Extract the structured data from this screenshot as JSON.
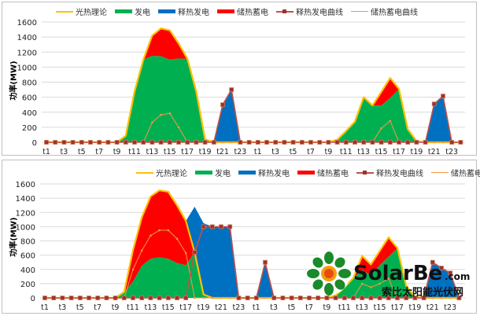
{
  "legend": [
    "光热理论",
    "发电",
    "释热发电",
    "储热蓄电",
    "释热发电曲线",
    "储热蓄电曲线"
  ],
  "colors": {
    "theory": "#ffc000",
    "generation": "#00b050",
    "release": "#0070c0",
    "storage": "#ff0000",
    "release_curve": "#c0504d",
    "storage_curve": "#f79646"
  },
  "watermark": {
    "logo_text": "SolarBe",
    "domain": ".com",
    "subtitle": "索比太阳能光伏网"
  },
  "chart_data": [
    {
      "type": "area",
      "ylabel": "功率(MW)",
      "ylim": [
        0,
        1600
      ],
      "yticks": [
        0,
        200,
        400,
        600,
        800,
        1000,
        1200,
        1400,
        1600
      ],
      "grid": true,
      "legend_position": "top",
      "xtick_labels": [
        "t1",
        "t3",
        "t5",
        "t7",
        "t9",
        "t11",
        "t13",
        "t15",
        "t17",
        "t19",
        "t21",
        "t23",
        "t1",
        "t3",
        "t5",
        "t7",
        "t9",
        "t11",
        "t13",
        "t15",
        "t17",
        "t19",
        "t21",
        "t23"
      ],
      "categories": [
        "t1",
        "t2",
        "t3",
        "t4",
        "t5",
        "t6",
        "t7",
        "t8",
        "t9",
        "t10",
        "t11",
        "t12",
        "t13",
        "t14",
        "t15",
        "t16",
        "t17",
        "t18",
        "t19",
        "t20",
        "t21",
        "t22",
        "t23",
        "t24",
        "t1",
        "t2",
        "t3",
        "t4",
        "t5",
        "t6",
        "t7",
        "t8",
        "t9",
        "t10",
        "t11",
        "t12",
        "t13",
        "t14",
        "t15",
        "t16",
        "t17",
        "t18",
        "t19",
        "t20",
        "t21",
        "t22",
        "t23",
        "t24"
      ],
      "series": [
        {
          "name": "光热理论",
          "kind": "line",
          "values": [
            0,
            0,
            0,
            0,
            0,
            0,
            0,
            0,
            0,
            87,
            675,
            1100,
            1420,
            1515,
            1490,
            1315,
            1110,
            675,
            40,
            0,
            0,
            0,
            0,
            0,
            0,
            0,
            0,
            0,
            0,
            0,
            0,
            0,
            0,
            35,
            150,
            275,
            600,
            490,
            670,
            855,
            710,
            175,
            15,
            0,
            0,
            0,
            0,
            0
          ]
        },
        {
          "name": "发电",
          "kind": "area",
          "values": [
            0,
            0,
            0,
            0,
            0,
            0,
            0,
            0,
            0,
            87,
            675,
            1100,
            1150,
            1145,
            1100,
            1115,
            1110,
            675,
            40,
            0,
            0,
            0,
            0,
            0,
            0,
            0,
            0,
            0,
            0,
            0,
            0,
            0,
            0,
            35,
            150,
            275,
            600,
            490,
            490,
            590,
            710,
            175,
            15,
            0,
            0,
            0,
            0,
            0
          ]
        },
        {
          "name": "储热蓄电",
          "kind": "area",
          "values": [
            0,
            0,
            0,
            0,
            0,
            0,
            0,
            0,
            0,
            0,
            0,
            0,
            270,
            370,
            390,
            200,
            0,
            0,
            0,
            0,
            0,
            0,
            0,
            0,
            0,
            0,
            0,
            0,
            0,
            0,
            0,
            0,
            0,
            0,
            0,
            0,
            0,
            0,
            180,
            265,
            0,
            0,
            0,
            0,
            0,
            0,
            0,
            0
          ]
        },
        {
          "name": "释热发电",
          "kind": "area",
          "values": [
            0,
            0,
            0,
            0,
            0,
            0,
            0,
            0,
            0,
            0,
            0,
            0,
            0,
            0,
            0,
            0,
            0,
            0,
            0,
            0,
            500,
            700,
            0,
            0,
            0,
            0,
            0,
            0,
            0,
            0,
            0,
            0,
            0,
            0,
            0,
            0,
            0,
            0,
            0,
            0,
            0,
            0,
            0,
            0,
            510,
            615,
            0,
            0
          ]
        },
        {
          "name": "释热发电曲线",
          "kind": "line",
          "values": [
            0,
            0,
            0,
            0,
            0,
            0,
            0,
            0,
            0,
            0,
            0,
            0,
            0,
            0,
            0,
            0,
            0,
            0,
            0,
            0,
            500,
            700,
            0,
            0,
            0,
            0,
            0,
            0,
            0,
            0,
            0,
            0,
            0,
            0,
            0,
            0,
            0,
            0,
            0,
            0,
            0,
            0,
            0,
            0,
            510,
            615,
            0,
            0
          ]
        },
        {
          "name": "储热蓄电曲线",
          "kind": "line",
          "values": [
            0,
            0,
            0,
            0,
            0,
            0,
            0,
            0,
            0,
            0,
            0,
            0,
            265,
            365,
            385,
            200,
            0,
            0,
            0,
            0,
            0,
            0,
            0,
            0,
            0,
            0,
            0,
            0,
            0,
            0,
            0,
            0,
            0,
            0,
            0,
            0,
            0,
            0,
            185,
            285,
            0,
            0,
            0,
            0,
            0,
            0,
            0,
            0
          ]
        }
      ]
    },
    {
      "type": "area",
      "ylabel": "功率(MW)",
      "ylim": [
        0,
        1600
      ],
      "yticks": [
        0,
        200,
        400,
        600,
        800,
        1000,
        1200,
        1400,
        1600
      ],
      "grid": true,
      "legend_position": "top-right",
      "xtick_labels": [
        "t1",
        "t3",
        "t5",
        "t7",
        "t9",
        "t11",
        "t13",
        "t15",
        "t17",
        "t19",
        "t21",
        "t23",
        "t1",
        "t3",
        "t5",
        "t7",
        "t9",
        "t11",
        "t13",
        "t15",
        "t17",
        "t19",
        "t21",
        "t23"
      ],
      "categories": [
        "t1",
        "t2",
        "t3",
        "t4",
        "t5",
        "t6",
        "t7",
        "t8",
        "t9",
        "t10",
        "t11",
        "t12",
        "t13",
        "t14",
        "t15",
        "t16",
        "t17",
        "t18",
        "t19",
        "t20",
        "t21",
        "t22",
        "t23",
        "t24",
        "t1",
        "t2",
        "t3",
        "t4",
        "t5",
        "t6",
        "t7",
        "t8",
        "t9",
        "t10",
        "t11",
        "t12",
        "t13",
        "t14",
        "t15",
        "t16",
        "t17",
        "t18",
        "t19",
        "t20",
        "t21",
        "t22",
        "t23",
        "t24"
      ],
      "series": [
        {
          "name": "光热理论",
          "kind": "line",
          "values": [
            0,
            0,
            0,
            0,
            0,
            0,
            0,
            0,
            0,
            85,
            670,
            1130,
            1425,
            1510,
            1490,
            1300,
            1080,
            640,
            50,
            0,
            0,
            0,
            0,
            0,
            0,
            0,
            0,
            0,
            0,
            0,
            0,
            0,
            0,
            35,
            150,
            280,
            590,
            470,
            660,
            850,
            700,
            170,
            15,
            0,
            0,
            0,
            0,
            0
          ]
        },
        {
          "name": "发电",
          "kind": "area",
          "values": [
            0,
            0,
            0,
            0,
            0,
            0,
            0,
            0,
            0,
            85,
            230,
            450,
            550,
            570,
            550,
            490,
            460,
            640,
            50,
            0,
            0,
            0,
            0,
            0,
            0,
            0,
            0,
            0,
            0,
            0,
            0,
            0,
            0,
            35,
            150,
            280,
            390,
            320,
            460,
            580,
            700,
            170,
            15,
            0,
            0,
            0,
            0,
            0
          ]
        },
        {
          "name": "储热蓄电",
          "kind": "area",
          "values": [
            0,
            0,
            0,
            0,
            0,
            0,
            0,
            0,
            0,
            0,
            440,
            680,
            875,
            940,
            940,
            810,
            620,
            0,
            0,
            0,
            0,
            0,
            0,
            0,
            0,
            0,
            0,
            0,
            0,
            0,
            0,
            0,
            0,
            0,
            0,
            0,
            200,
            150,
            200,
            270,
            0,
            0,
            0,
            0,
            0,
            0,
            0,
            0
          ]
        },
        {
          "name": "释热发电",
          "kind": "area",
          "values": [
            0,
            0,
            0,
            0,
            0,
            0,
            0,
            0,
            0,
            0,
            0,
            0,
            0,
            0,
            0,
            0,
            0,
            640,
            1000,
            1000,
            1000,
            1000,
            0,
            0,
            0,
            500,
            0,
            0,
            0,
            0,
            0,
            0,
            0,
            0,
            0,
            0,
            0,
            0,
            0,
            0,
            0,
            0,
            0,
            0,
            500,
            420,
            350,
            0
          ]
        },
        {
          "name": "释热发电曲线",
          "kind": "line",
          "values": [
            0,
            0,
            0,
            0,
            0,
            0,
            0,
            0,
            0,
            0,
            0,
            0,
            0,
            0,
            0,
            0,
            0,
            640,
            1000,
            1000,
            1000,
            1000,
            0,
            0,
            0,
            500,
            0,
            0,
            0,
            0,
            0,
            0,
            0,
            0,
            0,
            0,
            0,
            0,
            0,
            0,
            0,
            0,
            0,
            0,
            500,
            420,
            350,
            0
          ]
        },
        {
          "name": "储热蓄电曲线",
          "kind": "line",
          "values": [
            0,
            0,
            0,
            0,
            0,
            0,
            0,
            0,
            0,
            0,
            400,
            665,
            875,
            950,
            950,
            830,
            630,
            0,
            0,
            0,
            0,
            0,
            0,
            0,
            0,
            0,
            0,
            0,
            0,
            0,
            0,
            0,
            0,
            0,
            0,
            0,
            200,
            150,
            200,
            270,
            0,
            0,
            0,
            0,
            0,
            0,
            0,
            0
          ]
        }
      ]
    }
  ]
}
